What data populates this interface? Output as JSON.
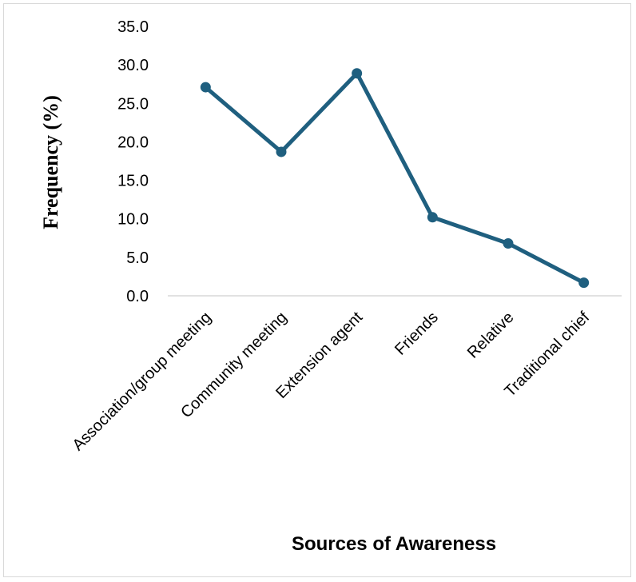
{
  "chart_data": {
    "type": "line",
    "title": "",
    "xlabel": "Sources of Awareness",
    "ylabel": "Frequency (%)",
    "categories": [
      "Association/group meeting",
      "Community meeting",
      "Extension agent",
      "Friends",
      "Relative",
      "Traditional chief"
    ],
    "series": [
      {
        "values": [
          27.1,
          18.7,
          28.9,
          10.2,
          6.8,
          1.7
        ]
      }
    ],
    "ylim": [
      0,
      35
    ],
    "yticks": [
      "0.0",
      "5.0",
      "10.0",
      "15.0",
      "20.0",
      "25.0",
      "30.0",
      "35.0"
    ],
    "grid": false,
    "legend": "none",
    "line_color": "#1f5f7f",
    "axis_color": "#d9d9d9"
  }
}
